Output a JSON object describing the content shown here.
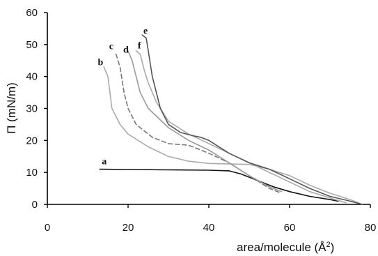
{
  "chart_data": {
    "type": "line",
    "title": "",
    "xlabel_main": "area/molecule (",
    "xlabel_unit": "Å",
    "xlabel_exp": "2",
    "xlabel_close": ")",
    "ylabel": "Π (mN/m)",
    "xlim": [
      0,
      80
    ],
    "ylim": [
      0,
      60
    ],
    "x_ticks": [
      0,
      20,
      40,
      60,
      80
    ],
    "y_ticks": [
      0,
      10,
      20,
      30,
      40,
      50,
      60
    ],
    "grid": false,
    "series": [
      {
        "name": "a",
        "color": "#111111",
        "dash": "",
        "width": 1.6,
        "label_at": [
          13.5,
          12.5
        ],
        "points": [
          [
            13,
            11
          ],
          [
            20,
            10.9
          ],
          [
            30,
            10.8
          ],
          [
            40,
            10.7
          ],
          [
            45,
            10.5
          ],
          [
            48,
            9.5
          ],
          [
            52,
            7.5
          ],
          [
            56,
            5.5
          ],
          [
            60,
            4
          ],
          [
            65,
            2.5
          ],
          [
            70,
            1.5
          ],
          [
            72,
            1
          ]
        ]
      },
      {
        "name": "b",
        "color": "#aaaaaa",
        "dash": "",
        "width": 1.6,
        "label_at": [
          12.5,
          43.5
        ],
        "points": [
          [
            14,
            43
          ],
          [
            15,
            40
          ],
          [
            16,
            30
          ],
          [
            18,
            25
          ],
          [
            20,
            22
          ],
          [
            25,
            18
          ],
          [
            30,
            15
          ],
          [
            35,
            13.5
          ],
          [
            40,
            12.8
          ],
          [
            50,
            12.5
          ],
          [
            55,
            11
          ],
          [
            60,
            9
          ],
          [
            65,
            6
          ],
          [
            70,
            3.5
          ],
          [
            75,
            1.5
          ],
          [
            78,
            0
          ]
        ]
      },
      {
        "name": "c",
        "color": "#777777",
        "dash": "6,4",
        "width": 1.6,
        "label_at": [
          15.3,
          48.5
        ],
        "points": [
          [
            17,
            47
          ],
          [
            18,
            43
          ],
          [
            19,
            35
          ],
          [
            20,
            30
          ],
          [
            22,
            25
          ],
          [
            26,
            21
          ],
          [
            30,
            19
          ],
          [
            35,
            18.5
          ],
          [
            40,
            16
          ],
          [
            45,
            13
          ],
          [
            50,
            9
          ],
          [
            55,
            5
          ],
          [
            58,
            3.5
          ]
        ]
      },
      {
        "name": "d",
        "color": "#999999",
        "dash": "",
        "width": 1.6,
        "label_at": [
          18.8,
          47.5
        ],
        "points": [
          [
            20,
            48
          ],
          [
            21,
            45
          ],
          [
            22,
            40
          ],
          [
            23,
            35
          ],
          [
            25,
            30
          ],
          [
            30,
            24
          ],
          [
            35,
            20
          ],
          [
            40,
            17
          ],
          [
            45,
            13
          ],
          [
            50,
            9
          ],
          [
            55,
            5.5
          ],
          [
            58,
            4
          ]
        ]
      },
      {
        "name": "f",
        "color": "#aaaaaa",
        "dash": "",
        "width": 1.6,
        "label_at": [
          22.4,
          48.8
        ],
        "points": [
          [
            22,
            48
          ],
          [
            23,
            47
          ],
          [
            24,
            42
          ],
          [
            25,
            38
          ],
          [
            27,
            32
          ],
          [
            30,
            26
          ],
          [
            35,
            22
          ],
          [
            40,
            19
          ],
          [
            45,
            16
          ],
          [
            50,
            13
          ],
          [
            55,
            10
          ],
          [
            60,
            7
          ],
          [
            65,
            4
          ],
          [
            70,
            2
          ],
          [
            74,
            0.5
          ]
        ]
      },
      {
        "name": "e",
        "color": "#555555",
        "dash": "",
        "width": 1.6,
        "label_at": [
          23.8,
          53.3
        ],
        "points": [
          [
            23.5,
            53
          ],
          [
            24.5,
            52
          ],
          [
            25,
            48
          ],
          [
            26,
            40
          ],
          [
            28,
            30
          ],
          [
            30,
            25
          ],
          [
            33,
            22.5
          ],
          [
            36,
            21.5
          ],
          [
            38,
            21
          ],
          [
            40,
            20
          ],
          [
            45,
            16
          ],
          [
            50,
            13
          ],
          [
            55,
            11
          ],
          [
            60,
            8
          ],
          [
            65,
            5
          ],
          [
            70,
            2.5
          ],
          [
            75,
            1
          ],
          [
            78,
            0
          ]
        ]
      }
    ]
  }
}
